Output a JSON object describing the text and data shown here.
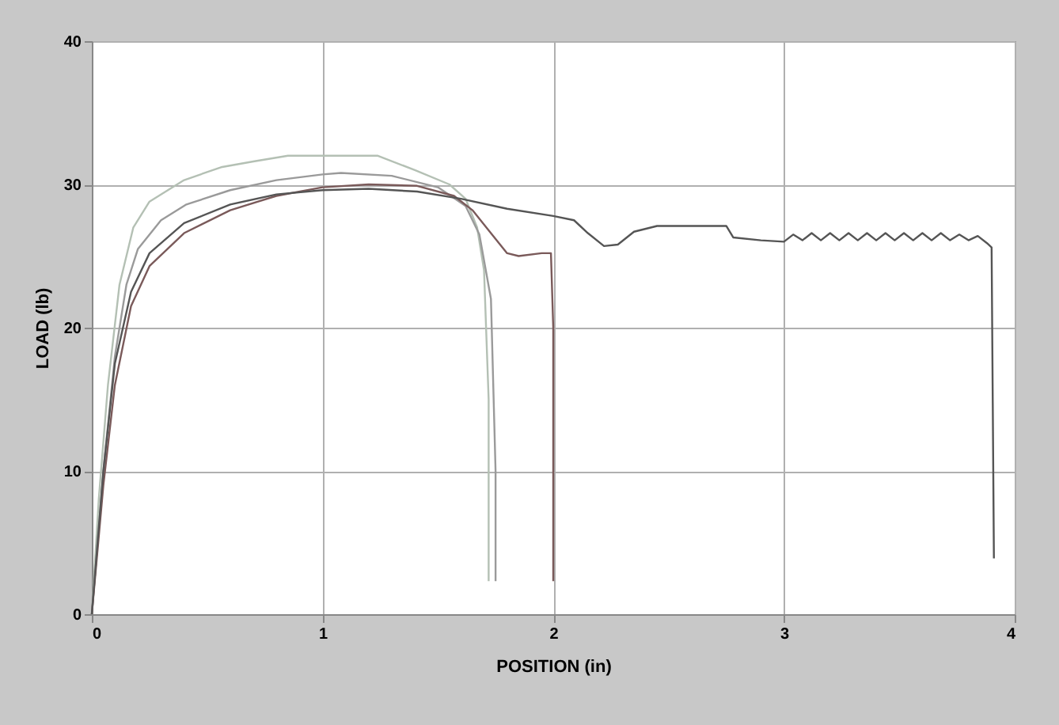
{
  "chart_data": {
    "type": "line",
    "xlabel": "POSITION (in)",
    "ylabel": "LOAD (lb)",
    "xlim": [
      0,
      4
    ],
    "ylim": [
      0,
      40
    ],
    "xticks": [
      0,
      1,
      2,
      3,
      4
    ],
    "yticks": [
      0,
      10,
      20,
      30,
      40
    ],
    "grid": true,
    "legend": false,
    "marker": "none",
    "line_style": "solid",
    "series": [
      {
        "color": "#b4c0b4",
        "x": [
          0,
          0.03,
          0.07,
          0.12,
          0.18,
          0.25,
          0.4,
          0.56,
          0.7,
          0.85,
          1.0,
          1.24,
          1.4,
          1.55,
          1.62,
          1.67,
          1.7,
          1.72,
          1.72
        ],
        "values": [
          0,
          8,
          16,
          23,
          27,
          28.8,
          30.3,
          31.2,
          31.6,
          32,
          32,
          32,
          31,
          30,
          29,
          27,
          24,
          15,
          2.3
        ]
      },
      {
        "color": "#9a9a9a",
        "x": [
          0,
          0.05,
          0.1,
          0.15,
          0.2,
          0.3,
          0.41,
          0.6,
          0.8,
          1.0,
          1.08,
          1.3,
          1.5,
          1.62,
          1.68,
          1.73,
          1.75,
          1.75
        ],
        "values": [
          0,
          10,
          18,
          23,
          25.5,
          27.5,
          28.6,
          29.6,
          30.3,
          30.7,
          30.8,
          30.6,
          29.8,
          28.5,
          26.5,
          22,
          10,
          2.3
        ]
      },
      {
        "color": "#7a5a5a",
        "x": [
          0,
          0.05,
          0.1,
          0.17,
          0.25,
          0.4,
          0.6,
          0.8,
          1.0,
          1.2,
          1.41,
          1.57,
          1.65,
          1.72,
          1.8,
          1.85,
          1.95,
          1.99,
          2.0,
          2.0
        ],
        "values": [
          0,
          9,
          16,
          21.5,
          24.3,
          26.6,
          28.2,
          29.2,
          29.8,
          30,
          29.9,
          29.2,
          28.2,
          26.8,
          25.2,
          25,
          25.2,
          25.2,
          20,
          2.3
        ]
      },
      {
        "color": "#555555",
        "x": [
          0,
          0.05,
          0.1,
          0.17,
          0.25,
          0.4,
          0.6,
          0.8,
          1.0,
          1.2,
          1.41,
          1.6,
          1.8,
          2.0,
          2.09,
          2.15,
          2.22,
          2.28,
          2.35,
          2.45,
          2.75,
          2.78,
          2.9,
          3.0,
          3.04,
          3.08,
          3.12,
          3.16,
          3.2,
          3.24,
          3.28,
          3.32,
          3.36,
          3.4,
          3.44,
          3.48,
          3.52,
          3.56,
          3.6,
          3.64,
          3.68,
          3.72,
          3.76,
          3.8,
          3.84,
          3.88,
          3.9,
          3.91
        ],
        "values": [
          0,
          10,
          17.5,
          22.5,
          25.2,
          27.3,
          28.6,
          29.3,
          29.6,
          29.7,
          29.5,
          29.0,
          28.3,
          27.8,
          27.5,
          26.6,
          25.7,
          25.8,
          26.7,
          27.1,
          27.1,
          26.3,
          26.1,
          26.0,
          26.5,
          26.1,
          26.6,
          26.1,
          26.6,
          26.1,
          26.6,
          26.1,
          26.6,
          26.1,
          26.6,
          26.1,
          26.6,
          26.1,
          26.6,
          26.1,
          26.6,
          26.1,
          26.5,
          26.1,
          26.4,
          25.9,
          25.6,
          3.9
        ]
      }
    ]
  }
}
